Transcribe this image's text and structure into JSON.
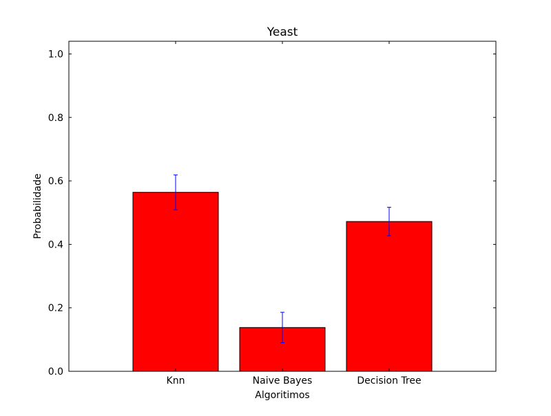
{
  "chart_data": {
    "type": "bar",
    "title": "Yeast",
    "xlabel": "Algoritimos",
    "ylabel": "Probabilidade",
    "categories": [
      "Knn",
      "Naive Bayes",
      "Decision Tree"
    ],
    "values": [
      0.564,
      0.138,
      0.472
    ],
    "errors": [
      0.055,
      0.048,
      0.045
    ],
    "ylim": [
      0.0,
      1.04
    ],
    "yticks": [
      "0.0",
      "0.2",
      "0.4",
      "0.6",
      "0.8",
      "1.0"
    ],
    "ytick_values": [
      0.0,
      0.2,
      0.4,
      0.6,
      0.8,
      1.0
    ],
    "xlim": [
      -0.5,
      3.5
    ],
    "bar_positions": [
      0.5,
      1.5,
      2.5
    ],
    "bar_width": 0.8,
    "grid": false,
    "colors": {
      "bar_fill": "#ff0000",
      "bar_edge": "#000000",
      "error_bar": "#0000ff",
      "axes": "#000000"
    }
  }
}
